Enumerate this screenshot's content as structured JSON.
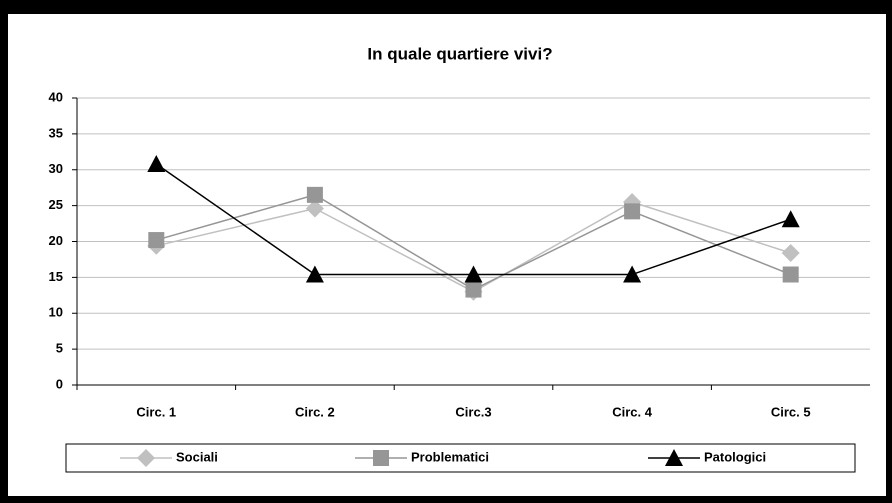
{
  "chart_data": {
    "type": "line",
    "title": "In quale quartiere vivi?",
    "categories": [
      "Circ. 1",
      "Circ. 2",
      "Circ.3",
      "Circ. 4",
      "Circ. 5"
    ],
    "series": [
      {
        "name": "Sociali",
        "color": "#c0c0c0",
        "marker": "diamond",
        "values": [
          19.4,
          24.6,
          13.0,
          25.5,
          18.4
        ]
      },
      {
        "name": "Problematici",
        "color": "#969696",
        "marker": "square",
        "values": [
          20.2,
          26.5,
          13.3,
          24.2,
          15.4
        ]
      },
      {
        "name": "Patologici",
        "color": "#000000",
        "marker": "triangle",
        "values": [
          30.8,
          15.4,
          15.4,
          15.4,
          23.1
        ]
      }
    ],
    "ylim": [
      0,
      40
    ],
    "yticks": [
      0,
      5,
      10,
      15,
      20,
      25,
      30,
      35,
      40
    ],
    "grid": true,
    "legend": "bottom"
  }
}
